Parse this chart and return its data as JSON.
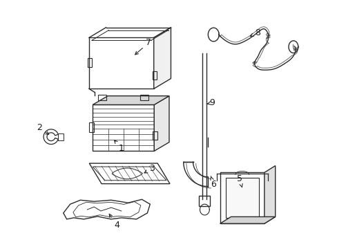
{
  "background_color": "#ffffff",
  "line_color": "#2a2a2a",
  "label_color": "#1a1a1a",
  "figsize": [
    4.89,
    3.6
  ],
  "dpi": 100
}
